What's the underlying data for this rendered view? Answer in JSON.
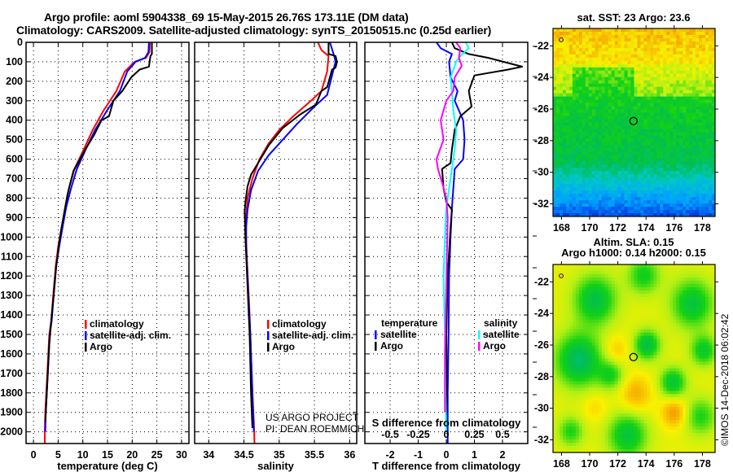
{
  "header": {
    "line1": "Argo profile: aoml 5904338_69 15-May-2015 26.76S 173.11E (DM data)",
    "line2": "Climatology: CARS2009. Satellite-adjusted climatology: synTS_20150515.nc (0.25d earlier)"
  },
  "colors": {
    "climatology": "#ff0000",
    "satellite_adj": "#0000ff",
    "argo": "#000000",
    "salinity_satellite": "#00ffff",
    "salinity_argo": "#ff00ff"
  },
  "credits": {
    "project": "US ARGO PROJECT",
    "pi": "PI: DEAN ROEMMICH",
    "imos": "©IMOS 14-Dec-2018 06:02:42"
  },
  "chart_data": [
    {
      "id": "temperature",
      "type": "line",
      "xlabel": "temperature (deg C)",
      "ylabel": "",
      "xlim": [
        -1.5,
        31.5
      ],
      "ylim": [
        2060,
        0
      ],
      "xticks": [
        0,
        5,
        10,
        15,
        20,
        25,
        30
      ],
      "yticks": [
        0,
        100,
        200,
        300,
        400,
        500,
        600,
        700,
        800,
        900,
        1000,
        1100,
        1200,
        1300,
        1400,
        1500,
        1600,
        1700,
        1800,
        1900,
        2000
      ],
      "grid": true,
      "legend": {
        "position": "center-right",
        "entries": [
          "climatology",
          "satellite-adj. clim.",
          "Argo"
        ]
      },
      "series": [
        {
          "name": "climatology",
          "color_key": "climatology",
          "points": [
            [
              23.6,
              0
            ],
            [
              23.5,
              50
            ],
            [
              22.8,
              80
            ],
            [
              20.5,
              100
            ],
            [
              18.5,
              150
            ],
            [
              16.8,
              250
            ],
            [
              14.2,
              350
            ],
            [
              12.0,
              450
            ],
            [
              10.2,
              550
            ],
            [
              8.3,
              650
            ],
            [
              7.2,
              750
            ],
            [
              6.4,
              850
            ],
            [
              5.7,
              950
            ],
            [
              5.0,
              1050
            ],
            [
              4.5,
              1150
            ],
            [
              4.0,
              1300
            ],
            [
              3.6,
              1430
            ],
            [
              3.2,
              1500
            ],
            [
              3.0,
              1600
            ],
            [
              2.8,
              1700
            ],
            [
              2.6,
              1800
            ],
            [
              2.4,
              1900
            ],
            [
              2.3,
              2000
            ],
            [
              2.3,
              2060
            ]
          ]
        },
        {
          "name": "satellite-adj. clim.",
          "color_key": "satellite_adj",
          "points": [
            [
              23.4,
              0
            ],
            [
              23.3,
              50
            ],
            [
              22.6,
              80
            ],
            [
              20.7,
              100
            ],
            [
              19.0,
              150
            ],
            [
              17.5,
              250
            ],
            [
              14.9,
              350
            ],
            [
              12.5,
              450
            ],
            [
              10.6,
              550
            ],
            [
              8.8,
              650
            ],
            [
              7.6,
              750
            ],
            [
              6.6,
              850
            ],
            [
              5.9,
              950
            ],
            [
              5.2,
              1050
            ],
            [
              4.6,
              1150
            ],
            [
              4.1,
              1300
            ],
            [
              3.7,
              1430
            ],
            [
              3.3,
              1500
            ],
            [
              3.1,
              1600
            ],
            [
              2.9,
              1700
            ],
            [
              2.7,
              1800
            ],
            [
              2.5,
              1900
            ],
            [
              2.4,
              2000
            ]
          ]
        },
        {
          "name": "Argo",
          "color_key": "argo",
          "points": [
            [
              24.0,
              0
            ],
            [
              24.0,
              60
            ],
            [
              23.7,
              70
            ],
            [
              23.4,
              125
            ],
            [
              21.5,
              140
            ],
            [
              19.8,
              180
            ],
            [
              18.0,
              250
            ],
            [
              16.2,
              300
            ],
            [
              15.3,
              380
            ],
            [
              13.8,
              400
            ],
            [
              12.2,
              480
            ],
            [
              10.5,
              550
            ],
            [
              9.0,
              620
            ],
            [
              8.1,
              660
            ],
            [
              7.5,
              720
            ],
            [
              6.9,
              780
            ],
            [
              6.2,
              880
            ],
            [
              5.7,
              950
            ],
            [
              5.1,
              1050
            ],
            [
              4.6,
              1150
            ],
            [
              4.1,
              1300
            ],
            [
              3.6,
              1430
            ],
            [
              3.2,
              1550
            ],
            [
              2.9,
              1700
            ],
            [
              2.6,
              1850
            ],
            [
              2.4,
              1950
            ]
          ]
        }
      ]
    },
    {
      "id": "salinity",
      "type": "line",
      "xlabel": "salinity",
      "xlim": [
        33.8,
        36.1
      ],
      "ylim": [
        2060,
        0
      ],
      "xticks": [
        34,
        34.5,
        35,
        35.5,
        36
      ],
      "xtick_labels": [
        "34",
        "34.5",
        "35",
        "35.5",
        "36"
      ],
      "grid": true,
      "legend": {
        "position": "center-right",
        "entries": [
          "climatology",
          "satellite-adj. clim.",
          "Argo"
        ]
      },
      "series": [
        {
          "name": "climatology",
          "color_key": "climatology",
          "points": [
            [
              35.55,
              0
            ],
            [
              35.6,
              40
            ],
            [
              35.7,
              70
            ],
            [
              35.68,
              150
            ],
            [
              35.6,
              250
            ],
            [
              35.45,
              300
            ],
            [
              35.2,
              380
            ],
            [
              35.0,
              450
            ],
            [
              34.85,
              520
            ],
            [
              34.72,
              600
            ],
            [
              34.62,
              700
            ],
            [
              34.55,
              800
            ],
            [
              34.53,
              900
            ],
            [
              34.53,
              1000
            ],
            [
              34.54,
              1100
            ],
            [
              34.56,
              1250
            ],
            [
              34.58,
              1400
            ],
            [
              34.6,
              1600
            ],
            [
              34.62,
              1800
            ],
            [
              34.64,
              1950
            ],
            [
              34.65,
              2060
            ]
          ]
        },
        {
          "name": "satellite-adj. clim.",
          "color_key": "satellite_adj",
          "points": [
            [
              35.72,
              0
            ],
            [
              35.78,
              70
            ],
            [
              35.8,
              100
            ],
            [
              35.75,
              170
            ],
            [
              35.68,
              270
            ],
            [
              35.5,
              330
            ],
            [
              35.25,
              420
            ],
            [
              35.05,
              500
            ],
            [
              34.85,
              580
            ],
            [
              34.7,
              660
            ],
            [
              34.6,
              760
            ],
            [
              34.55,
              860
            ],
            [
              34.53,
              950
            ],
            [
              34.53,
              1050
            ],
            [
              34.55,
              1200
            ],
            [
              34.57,
              1350
            ],
            [
              34.59,
              1500
            ],
            [
              34.61,
              1700
            ],
            [
              34.63,
              1900
            ],
            [
              34.64,
              2000
            ]
          ]
        },
        {
          "name": "Argo",
          "color_key": "argo",
          "points": [
            [
              35.7,
              0
            ],
            [
              35.7,
              60
            ],
            [
              35.8,
              70
            ],
            [
              35.82,
              100
            ],
            [
              35.8,
              130
            ],
            [
              35.75,
              140
            ],
            [
              35.68,
              230
            ],
            [
              35.6,
              250
            ],
            [
              35.52,
              320
            ],
            [
              35.3,
              370
            ],
            [
              35.05,
              440
            ],
            [
              34.85,
              530
            ],
            [
              34.7,
              620
            ],
            [
              34.6,
              680
            ],
            [
              34.55,
              740
            ],
            [
              34.52,
              820
            ],
            [
              34.51,
              870
            ],
            [
              34.52,
              1000
            ],
            [
              34.55,
              1250
            ],
            [
              34.58,
              1500
            ],
            [
              34.6,
              1800
            ],
            [
              34.62,
              1980
            ]
          ]
        }
      ]
    },
    {
      "id": "differences",
      "type": "line",
      "xlabel": "T difference from climatology",
      "xlabel2": "S difference from climatology",
      "xlim": [
        -2.9,
        2.9
      ],
      "ylim": [
        2060,
        0
      ],
      "xticks": [
        -2,
        -1,
        0,
        1,
        2
      ],
      "x2ticks": [
        -0.5,
        -0.25,
        0,
        0.25,
        0.5
      ],
      "x2tick_labels": [
        "-0.5",
        "-0.25",
        "0",
        "0.25",
        "0.5"
      ],
      "x2lim": [
        -0.725,
        0.725
      ],
      "grid": true,
      "legend": {
        "position": "bottom-center",
        "groups": [
          {
            "title": "temperature",
            "entries": [
              "satellite",
              "Argo"
            ]
          },
          {
            "title": "salinity",
            "entries": [
              "satellite",
              "Argo"
            ]
          }
        ]
      },
      "series": [
        {
          "name": "temperature satellite",
          "color_key": "satellite_adj",
          "points": [
            [
              -0.35,
              0
            ],
            [
              -0.2,
              30
            ],
            [
              0.2,
              60
            ],
            [
              0.1,
              100
            ],
            [
              0.15,
              180
            ],
            [
              0.4,
              250
            ],
            [
              0.3,
              300
            ],
            [
              0.6,
              400
            ],
            [
              0.65,
              500
            ],
            [
              0.6,
              600
            ],
            [
              0.3,
              650
            ],
            [
              0.25,
              750
            ],
            [
              0.2,
              850
            ],
            [
              0.15,
              1000
            ],
            [
              0.1,
              1200
            ],
            [
              0.08,
              1500
            ],
            [
              0.05,
              1800
            ],
            [
              0.05,
              2060
            ]
          ]
        },
        {
          "name": "temperature Argo",
          "color_key": "argo",
          "points": [
            [
              0.2,
              0
            ],
            [
              0.3,
              30
            ],
            [
              0.8,
              60
            ],
            [
              1.5,
              80
            ],
            [
              2.7,
              125
            ],
            [
              2.2,
              140
            ],
            [
              1.0,
              170
            ],
            [
              0.8,
              250
            ],
            [
              0.9,
              330
            ],
            [
              0.5,
              380
            ],
            [
              0.3,
              450
            ],
            [
              0.2,
              550
            ],
            [
              0.15,
              620
            ],
            [
              -0.15,
              650
            ],
            [
              -0.1,
              750
            ],
            [
              0.0,
              820
            ],
            [
              0.2,
              860
            ],
            [
              0.15,
              950
            ],
            [
              0.05,
              1200
            ],
            [
              0.0,
              1500
            ],
            [
              0.02,
              1800
            ],
            [
              0.0,
              2000
            ]
          ]
        },
        {
          "name": "salinity satellite",
          "color_key": "salinity_satellite",
          "points": [
            [
              0.7,
              0
            ],
            [
              0.8,
              30
            ],
            [
              0.5,
              70
            ],
            [
              0.35,
              100
            ],
            [
              0.15,
              180
            ],
            [
              0.2,
              250
            ],
            [
              0.25,
              350
            ],
            [
              0.35,
              450
            ],
            [
              0.3,
              550
            ],
            [
              0.2,
              650
            ],
            [
              0.1,
              750
            ],
            [
              0.0,
              850
            ],
            [
              -0.05,
              1000
            ],
            [
              -0.1,
              1200
            ],
            [
              -0.05,
              1500
            ],
            [
              -0.03,
              1800
            ],
            [
              0.0,
              2000
            ]
          ]
        },
        {
          "name": "salinity Argo",
          "color_key": "salinity_argo",
          "points": [
            [
              0.35,
              0
            ],
            [
              0.5,
              30
            ],
            [
              0.45,
              80
            ],
            [
              0.55,
              120
            ],
            [
              0.3,
              180
            ],
            [
              0.25,
              250
            ],
            [
              0.0,
              300
            ],
            [
              -0.2,
              400
            ],
            [
              -0.1,
              500
            ],
            [
              -0.35,
              600
            ],
            [
              -0.3,
              650
            ],
            [
              -0.15,
              720
            ],
            [
              0.0,
              800
            ],
            [
              0.05,
              900
            ],
            [
              0.02,
              1100
            ],
            [
              -0.02,
              1400
            ],
            [
              -0.05,
              1600
            ],
            [
              -0.05,
              1900
            ]
          ]
        }
      ]
    },
    {
      "id": "sst-map",
      "type": "heatmap",
      "title": "sat. SST: 23 Argo: 23.6",
      "xlim": [
        167.4,
        178.9
      ],
      "ylim": [
        -20.9,
        -32.8
      ],
      "xticks": [
        168,
        170,
        172,
        174,
        176,
        178
      ],
      "yticks": [
        -22,
        -24,
        -26,
        -28,
        -30,
        -32
      ],
      "ytick_labels": [
        "-22",
        "-24",
        "-26",
        "-28",
        "-30",
        "-32"
      ],
      "marker": {
        "lon": 173.11,
        "lat": -26.76
      },
      "description": "SST field: warm (orange/yellow) north of 25S, green mid, cool (cyan/blue) south of 30S"
    },
    {
      "id": "sla-map",
      "type": "heatmap",
      "title": "Altim. SLA: 0.15",
      "subtitle": "Argo h1000: 0.14 h2000: 0.15",
      "xlim": [
        167.4,
        178.9
      ],
      "ylim": [
        -20.9,
        -32.8
      ],
      "xticks": [
        168,
        170,
        172,
        174,
        176,
        178
      ],
      "yticks": [
        -22,
        -24,
        -26,
        -28,
        -30,
        -32
      ],
      "ytick_labels": [
        "-22",
        "-24",
        "-26",
        "-28",
        "-30",
        "-32"
      ],
      "marker": {
        "lon": 173.11,
        "lat": -26.76
      },
      "description": "SLA field: yellow background with green eddies and orange highs near 173E 29S and 176E 30S"
    }
  ]
}
